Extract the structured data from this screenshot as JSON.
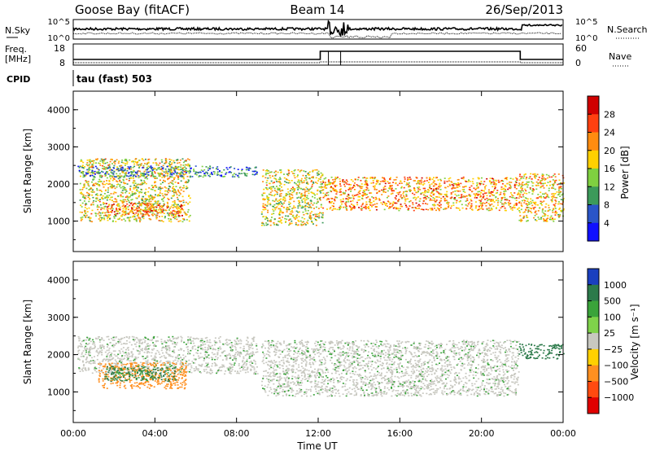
{
  "header": {
    "station": "Goose Bay (fitACF)",
    "beam": "Beam 14",
    "date": "26/Sep/2013"
  },
  "noise_panel": {
    "left_label": "N.Sky",
    "left_ticks": [
      "10^5",
      "10^0"
    ],
    "right_label": "N.Search",
    "right_ticks": [
      "10^5",
      "10^0"
    ]
  },
  "freq_panel": {
    "left_label_1": "Freq.",
    "left_label_2": "[MHz]",
    "left_ticks": [
      "18",
      "8"
    ],
    "right_label": "Nave",
    "right_ticks": [
      "60",
      "0"
    ]
  },
  "cpid": {
    "label": "CPID",
    "mode": "tau (fast) 503"
  },
  "power_panel": {
    "ylabel": "Slant Range [km]",
    "yticks": [
      "4000",
      "3000",
      "2000",
      "1000"
    ],
    "colorbar_label": "Power [dB]",
    "colorbar_ticks": [
      "28",
      "24",
      "20",
      "16",
      "12",
      "8",
      "4"
    ],
    "colors": [
      "#d00000",
      "#ff4010",
      "#ff8c10",
      "#ffd000",
      "#7fd040",
      "#3c9a5a",
      "#2a55c8",
      "#1010ff"
    ]
  },
  "velocity_panel": {
    "ylabel": "Slant Range [km]",
    "yticks": [
      "4000",
      "3000",
      "2000",
      "1000"
    ],
    "colorbar_label": "Velocity [m s⁻¹]",
    "colorbar_ticks": [
      "1000",
      "500",
      "100",
      "25",
      "−25",
      "−100",
      "−500",
      "−1000"
    ],
    "colors": [
      "#1a3fbf",
      "#2c7a4a",
      "#3aa33a",
      "#7fd24a",
      "#c8c8c0",
      "#ffd000",
      "#ff9020",
      "#ff4a10",
      "#e00000"
    ]
  },
  "x_axis": {
    "label": "Time UT",
    "ticks": [
      "00:00",
      "04:00",
      "08:00",
      "12:00",
      "16:00",
      "20:00",
      "00:00"
    ]
  },
  "chart_data": [
    {
      "type": "heatmap",
      "title": "Goose Bay (fitACF)  Beam 14  26/Sep/2013",
      "xlabel": "Time UT",
      "ylabel": "Slant Range [km]",
      "xlim": [
        "00:00",
        "24:00"
      ],
      "ylim": [
        180,
        4500
      ],
      "colorbar": {
        "label": "Power [dB]",
        "range": [
          0,
          30
        ]
      },
      "regions": [
        {
          "t_start": 0.3,
          "t_end": 5.7,
          "range_low": 1000,
          "range_high": 2700,
          "power_dB": 16
        },
        {
          "t_start": 1.5,
          "t_end": 5.3,
          "range_low": 1150,
          "range_high": 1500,
          "power_dB": 22
        },
        {
          "t_start": 0.2,
          "t_end": 9.0,
          "range_low": 2200,
          "range_high": 2500,
          "power_dB": 8
        },
        {
          "t_start": 9.2,
          "t_end": 12.2,
          "range_low": 900,
          "range_high": 2400,
          "power_dB": 16
        },
        {
          "t_start": 12.2,
          "t_end": 21.8,
          "range_low": 1300,
          "range_high": 2200,
          "power_dB": 20
        },
        {
          "t_start": 21.8,
          "t_end": 24.0,
          "range_low": 1000,
          "range_high": 2300,
          "power_dB": 18
        }
      ]
    },
    {
      "type": "heatmap",
      "title": "",
      "xlabel": "Time UT",
      "ylabel": "Slant Range [km]",
      "xlim": [
        "00:00",
        "24:00"
      ],
      "ylim": [
        180,
        4500
      ],
      "colorbar": {
        "label": "Velocity [m s⁻¹]",
        "range": [
          -1000,
          1000
        ]
      },
      "regions": [
        {
          "t_start": 0.2,
          "t_end": 9.0,
          "range_low": 1500,
          "range_high": 2500,
          "velocity_ms": 0
        },
        {
          "t_start": 1.2,
          "t_end": 5.5,
          "range_low": 1100,
          "range_high": 1800,
          "velocity_ms": -300
        },
        {
          "t_start": 1.5,
          "t_end": 5.0,
          "range_low": 1300,
          "range_high": 1700,
          "velocity_ms": 150
        },
        {
          "t_start": 9.2,
          "t_end": 21.8,
          "range_low": 900,
          "range_high": 2400,
          "velocity_ms": 0
        },
        {
          "t_start": 21.8,
          "t_end": 24.0,
          "range_low": 1900,
          "range_high": 2300,
          "velocity_ms": 300
        }
      ]
    }
  ]
}
